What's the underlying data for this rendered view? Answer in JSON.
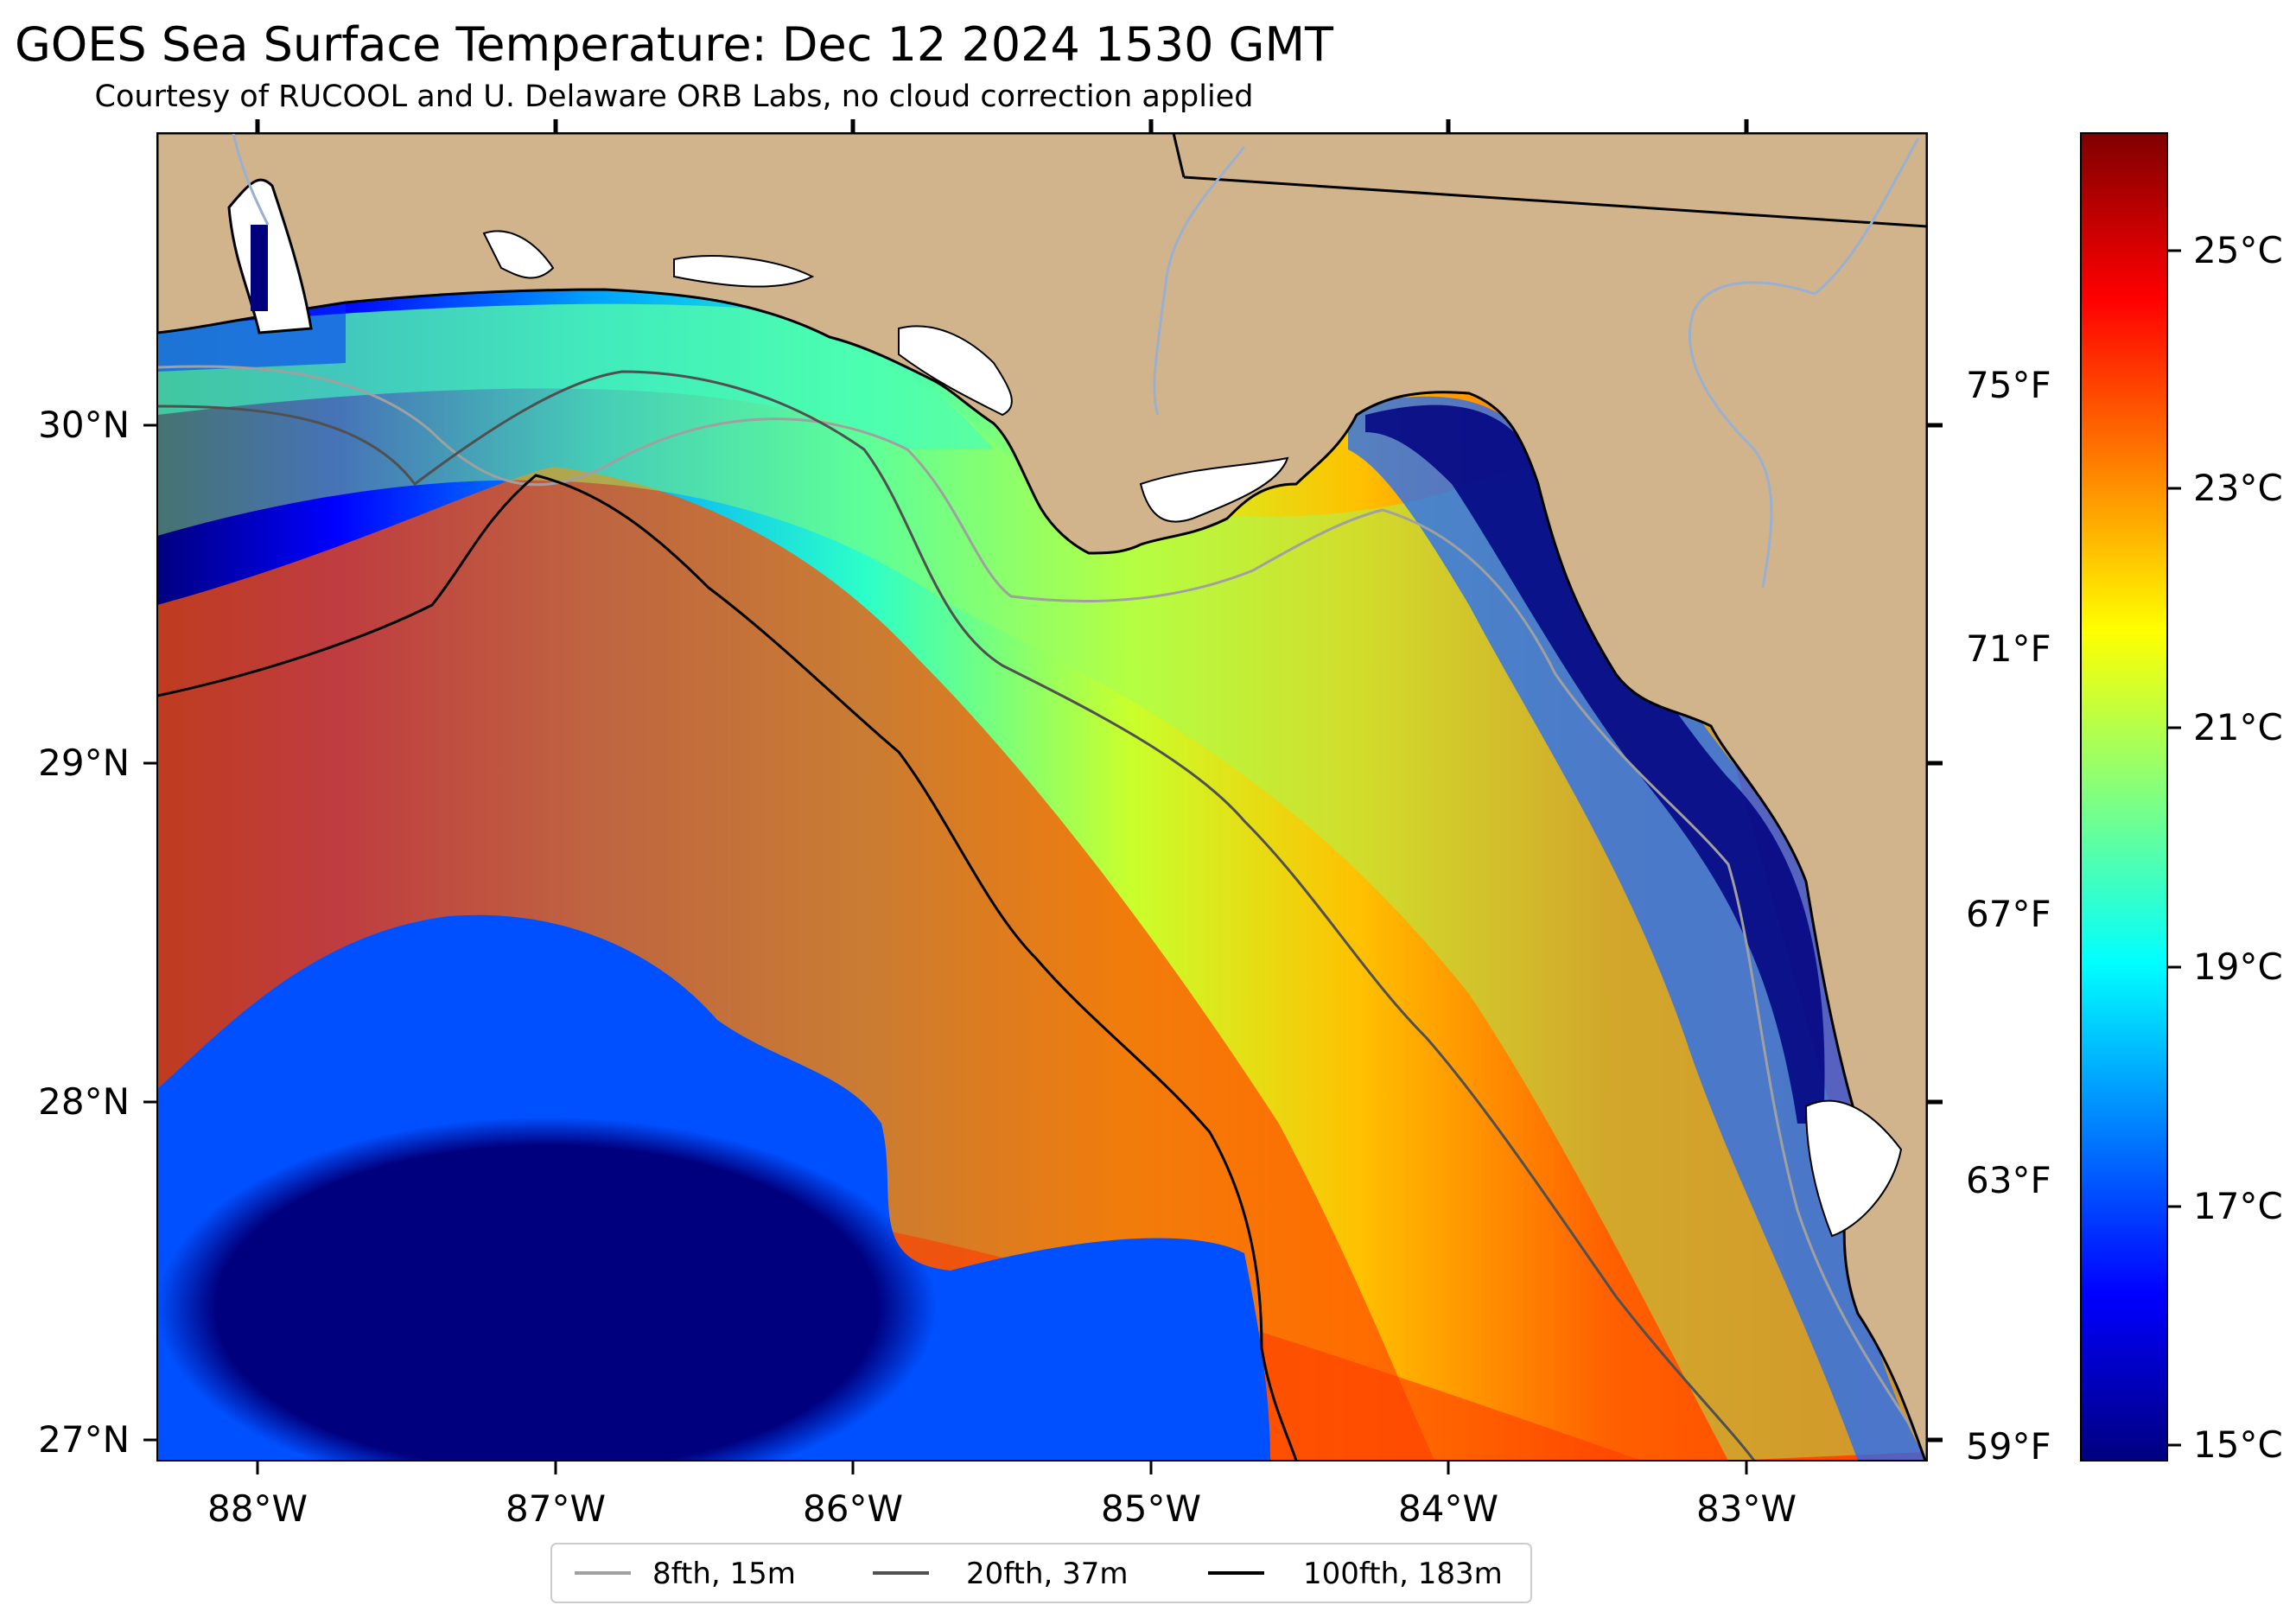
{
  "title": "GOES Sea Surface Temperature: Dec 12 2024 1530 GMT",
  "subtitle": "Courtesy of RUCOOL and U. Delaware ORB Labs, no cloud correction applied",
  "map": {
    "lon_range": [
      -88.33,
      -82.37
    ],
    "lat_range": [
      26.93,
      30.86
    ],
    "lon_ticks": [
      "88°W",
      "87°W",
      "86°W",
      "85°W",
      "84°W",
      "83°W"
    ],
    "lat_ticks": [
      "30°N",
      "29°N",
      "28°N",
      "27°N"
    ],
    "land_color": "#d2b48c",
    "no_data_color": "#ffffff"
  },
  "colorbar": {
    "celsius_ticks": [
      "25°C",
      "23°C",
      "21°C",
      "19°C",
      "17°C",
      "15°C"
    ],
    "fahrenheit_ticks": [
      "75°F",
      "71°F",
      "67°F",
      "63°F",
      "59°F"
    ],
    "range_c": [
      14.8,
      26.0
    ],
    "colormap": "jet"
  },
  "legend": {
    "items": [
      {
        "label": "8fth, 15m",
        "color": "#a0a0a0"
      },
      {
        "label": "20fth, 37m",
        "color": "#505050"
      },
      {
        "label": "100fth, 183m",
        "color": "#000000"
      }
    ]
  }
}
